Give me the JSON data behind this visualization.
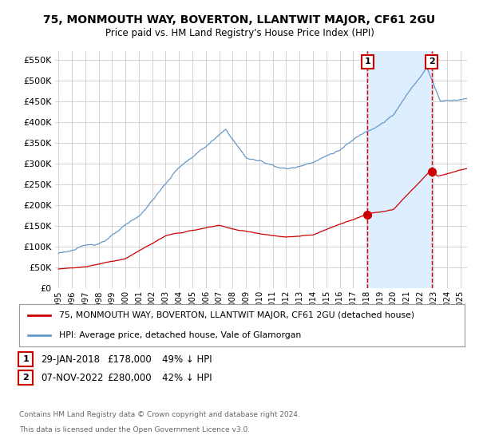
{
  "title": "75, MONMOUTH WAY, BOVERTON, LLANTWIT MAJOR, CF61 2GU",
  "subtitle": "Price paid vs. HM Land Registry's House Price Index (HPI)",
  "ylim": [
    0,
    570000
  ],
  "yticks": [
    0,
    50000,
    100000,
    150000,
    200000,
    250000,
    300000,
    350000,
    400000,
    450000,
    500000,
    550000
  ],
  "xlim_start": 1994.75,
  "xlim_end": 2025.5,
  "marker1_x": 2018.08,
  "marker1_y": 178000,
  "marker2_x": 2022.85,
  "marker2_y": 280000,
  "marker1_date": "29-JAN-2018",
  "marker1_price": "£178,000",
  "marker1_hpi": "49% ↓ HPI",
  "marker2_date": "07-NOV-2022",
  "marker2_price": "£280,000",
  "marker2_hpi": "42% ↓ HPI",
  "hpi_color": "#6699cc",
  "price_color": "#cc0000",
  "shade_color": "#ddeeff",
  "grid_color": "#cccccc",
  "bg_color": "#ffffff",
  "legend_label_price": "75, MONMOUTH WAY, BOVERTON, LLANTWIT MAJOR, CF61 2GU (detached house)",
  "legend_label_hpi": "HPI: Average price, detached house, Vale of Glamorgan",
  "footer_line1": "Contains HM Land Registry data © Crown copyright and database right 2024.",
  "footer_line2": "This data is licensed under the Open Government Licence v3.0."
}
